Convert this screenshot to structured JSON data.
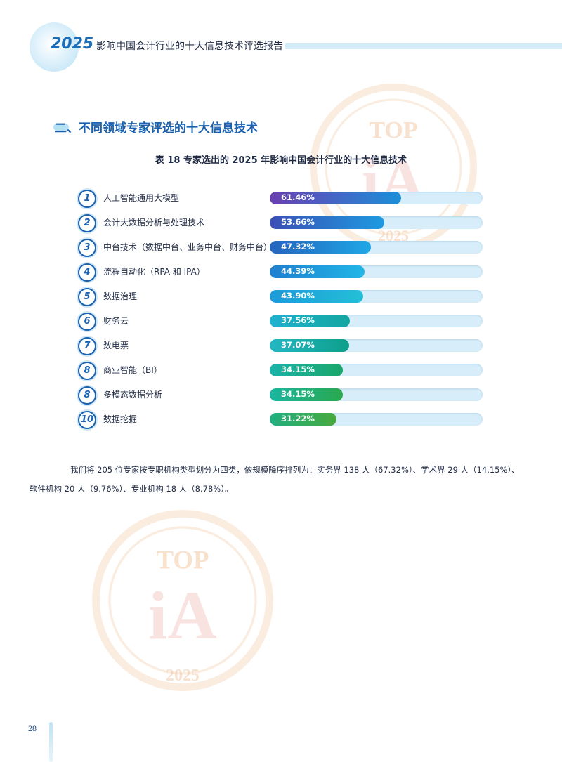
{
  "header": {
    "year": "2025",
    "title": "影响中国会计行业的十大信息技术评选报告"
  },
  "section_title": "二、不同领域专家评选的十大信息技术",
  "table_caption": "表 18  专家选出的 2025 年影响中国会计行业的十大信息技术",
  "watermark": {
    "top": "TOP",
    "logo": "iA",
    "year": "2025"
  },
  "chart_data": {
    "type": "bar",
    "orientation": "horizontal",
    "title": "表 18  专家选出的 2025 年影响中国会计行业的十大信息技术",
    "ranks": [
      "1",
      "2",
      "3",
      "4",
      "5",
      "6",
      "7",
      "8",
      "8",
      "10"
    ],
    "categories": [
      "人工智能通用大模型",
      "会计大数据分析与处理技术",
      "中台技术（数据中台、业务中台、财务中台）",
      "流程自动化（RPA 和 IPA）",
      "数据治理",
      "财务云",
      "数电票",
      "商业智能（BI）",
      "多模态数据分析",
      "数据挖掘"
    ],
    "values": [
      61.46,
      53.66,
      47.32,
      44.39,
      43.9,
      37.56,
      37.07,
      34.15,
      34.15,
      31.22
    ],
    "value_labels": [
      "61.46%",
      "53.66%",
      "47.32%",
      "44.39%",
      "43.90%",
      "37.56%",
      "37.07%",
      "34.15%",
      "34.15%",
      "31.22%"
    ],
    "xlim": [
      0,
      100
    ],
    "bar_gradients": [
      [
        "#6a3fb0",
        "#1d8fd8"
      ],
      [
        "#3b4fb6",
        "#1e9ae0"
      ],
      [
        "#2463be",
        "#1fa7e6"
      ],
      [
        "#1e7fd0",
        "#22b6e6"
      ],
      [
        "#1c9ad8",
        "#24bfd8"
      ],
      [
        "#1fb2d0",
        "#13a6a0"
      ],
      [
        "#22b7c4",
        "#0e9f8a"
      ],
      [
        "#19b3a8",
        "#1aa66a"
      ],
      [
        "#1ab6a0",
        "#2aa84e"
      ],
      [
        "#1fae7f",
        "#48a93c"
      ]
    ]
  },
  "paragraph": {
    "line1": "我们将 205 位专家按专职机构类型划分为四类，依规模降序排列为：实务界 138 人（67.32%）、学术界 29 人（14.15%）、",
    "line2": "软件机构 20 人（9.76%）、专业机构 18 人（8.78%）。"
  },
  "page_number": "28"
}
